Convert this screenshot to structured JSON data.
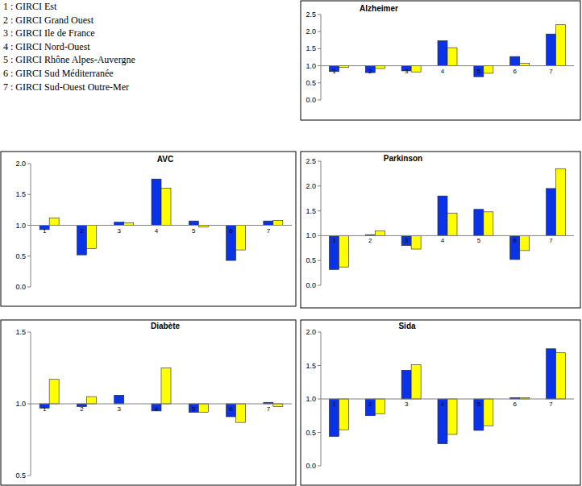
{
  "key": [
    "1 : GIRCI Est",
    "2 : GIRCI Grand Ouest",
    "3 : GIRCI Ile de France",
    "4 : GIRCI Nord-Ouest",
    "5 : GIRCI Rhône Alpes-Auvergne",
    "6 : GIRCI Sud Méditerranée",
    "7 : GIRCI Sud-Ouest Outre-Mer"
  ],
  "chart_data": [
    {
      "type": "bar",
      "title": "Alzheimer",
      "categories": [
        "1",
        "2",
        "3",
        "4",
        "5",
        "6",
        "7"
      ],
      "baseline": 1,
      "series": [
        {
          "color": "#0a32e6",
          "values": [
            0.83,
            0.8,
            0.85,
            1.73,
            0.68,
            1.27,
            1.93
          ]
        },
        {
          "color": "#ffff00",
          "values": [
            0.95,
            0.92,
            0.82,
            1.53,
            0.78,
            1.07,
            2.2
          ]
        }
      ],
      "ylim": [
        0,
        2.5
      ],
      "yticks": [
        {
          "value": 0,
          "label": "0.0"
        },
        0.5,
        {
          "value": 1,
          "label": "1.0"
        },
        1.5,
        {
          "value": 2,
          "label": "2.0"
        },
        2.5
      ],
      "grid": false
    },
    {
      "type": "bar",
      "title": "AVC",
      "categories": [
        "1",
        "2",
        "3",
        "4",
        "5",
        "6",
        "7"
      ],
      "baseline": 1,
      "series": [
        {
          "color": "#0a32e6",
          "values": [
            0.93,
            0.52,
            1.05,
            1.75,
            1.07,
            0.43,
            1.07
          ]
        },
        {
          "color": "#ffff00",
          "values": [
            1.12,
            0.62,
            1.04,
            1.6,
            0.97,
            0.6,
            1.08
          ]
        }
      ],
      "ylim": [
        0,
        2
      ],
      "yticks": [
        {
          "value": 0,
          "label": "0.0"
        },
        0.5,
        {
          "value": 1,
          "label": "1.0"
        },
        1.5,
        {
          "value": 2,
          "label": "2.0"
        }
      ],
      "grid": false
    },
    {
      "type": "bar",
      "title": "Parkinson",
      "categories": [
        "1",
        "2",
        "3",
        "4",
        "5",
        "6",
        "7"
      ],
      "baseline": 1,
      "series": [
        {
          "color": "#0a32e6",
          "values": [
            0.32,
            1.02,
            0.8,
            1.8,
            1.53,
            0.52,
            1.95
          ]
        },
        {
          "color": "#ffff00",
          "values": [
            0.37,
            1.1,
            0.73,
            1.45,
            1.48,
            0.7,
            2.35
          ]
        }
      ],
      "ylim": [
        0,
        2.5
      ],
      "yticks": [
        {
          "value": 0,
          "label": "0.0"
        },
        0.5,
        {
          "value": 1,
          "label": "1.0"
        },
        1.5,
        {
          "value": 2,
          "label": "2.0"
        },
        2.5
      ],
      "grid": false
    },
    {
      "type": "bar",
      "title": "Diabète",
      "categories": [
        "1",
        "2",
        "3",
        "4",
        "5",
        "6",
        "7"
      ],
      "baseline": 1,
      "series": [
        {
          "color": "#0a32e6",
          "values": [
            0.97,
            0.98,
            1.06,
            0.95,
            0.94,
            0.91,
            1.01
          ]
        },
        {
          "color": "#ffff00",
          "values": [
            1.17,
            1.05,
            1.0,
            1.25,
            0.94,
            0.87,
            0.98
          ]
        }
      ],
      "ylim": [
        0.5,
        1.5
      ],
      "yticks": [
        0.5,
        {
          "value": 1,
          "label": "1.0"
        },
        1.5
      ],
      "grid": false
    },
    {
      "type": "bar",
      "title": "Sida",
      "categories": [
        "1",
        "2",
        "3",
        "4",
        "5",
        "6",
        "7"
      ],
      "baseline": 1,
      "series": [
        {
          "color": "#0a32e6",
          "values": [
            0.44,
            0.75,
            1.43,
            0.33,
            0.53,
            1.02,
            1.75
          ]
        },
        {
          "color": "#ffff00",
          "values": [
            0.54,
            0.78,
            1.51,
            0.47,
            0.6,
            1.02,
            1.69
          ]
        }
      ],
      "ylim": [
        0,
        2
      ],
      "yticks": [
        {
          "value": 0,
          "label": "0.0"
        },
        0.5,
        {
          "value": 1,
          "label": "1.0"
        },
        1.5,
        {
          "value": 2,
          "label": "2.0"
        }
      ],
      "grid": false
    }
  ]
}
